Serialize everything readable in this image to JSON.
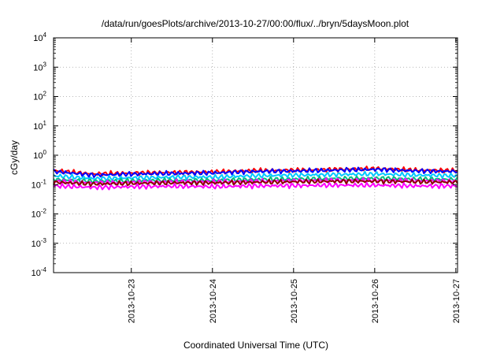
{
  "chart_data": {
    "type": "line",
    "title": "/data/run/goesPlots/archive/2013-10-27/00:00/flux/../bryn/5daysMoon.plot",
    "xlabel": "Coordinated Universal Time (UTC)",
    "ylabel": "cGy/day",
    "y_scale": "log",
    "ylim": [
      0.0001,
      10000
    ],
    "y_ticks": [
      {
        "base": "10",
        "exp": "-4",
        "value": 0.0001
      },
      {
        "base": "10",
        "exp": "-3",
        "value": 0.001
      },
      {
        "base": "10",
        "exp": "-2",
        "value": 0.01
      },
      {
        "base": "10",
        "exp": "-1",
        "value": 0.1
      },
      {
        "base": "10",
        "exp": "0",
        "value": 1
      },
      {
        "base": "10",
        "exp": "1",
        "value": 10
      },
      {
        "base": "10",
        "exp": "2",
        "value": 100
      },
      {
        "base": "10",
        "exp": "3",
        "value": 1000
      },
      {
        "base": "10",
        "exp": "4",
        "value": 10000
      }
    ],
    "xlim": [
      "2013-10-22T01:00",
      "2013-10-27T00:30"
    ],
    "x_ticks": [
      "2013-10-23",
      "2013-10-24",
      "2013-10-25",
      "2013-10-26",
      "2013-10-27"
    ],
    "grid": true,
    "series": [
      {
        "color": "#ff0000",
        "values": [
          0.3,
          0.23,
          0.25,
          0.26,
          0.27,
          0.3,
          0.31,
          0.33,
          0.35,
          0.31,
          0.3
        ]
      },
      {
        "color": "#0000ff",
        "values": [
          0.28,
          0.21,
          0.23,
          0.24,
          0.25,
          0.28,
          0.29,
          0.31,
          0.33,
          0.29,
          0.28
        ]
      },
      {
        "color": "#00c8ff",
        "values": [
          0.2,
          0.16,
          0.17,
          0.18,
          0.18,
          0.2,
          0.21,
          0.22,
          0.23,
          0.21,
          0.2
        ]
      },
      {
        "color": "#00c080",
        "values": [
          0.15,
          0.13,
          0.135,
          0.14,
          0.14,
          0.15,
          0.155,
          0.16,
          0.165,
          0.155,
          0.15
        ]
      },
      {
        "color": "#ff00ff",
        "values": [
          0.13,
          0.115,
          0.12,
          0.125,
          0.125,
          0.13,
          0.135,
          0.14,
          0.14,
          0.135,
          0.13
        ]
      },
      {
        "color": "#8b0000",
        "values": [
          0.12,
          0.105,
          0.11,
          0.115,
          0.115,
          0.12,
          0.125,
          0.13,
          0.13,
          0.125,
          0.12
        ]
      },
      {
        "color": "#ff00ff",
        "values": [
          0.09,
          0.08,
          0.085,
          0.088,
          0.085,
          0.09,
          0.092,
          0.095,
          0.095,
          0.09,
          0.09
        ]
      }
    ]
  }
}
